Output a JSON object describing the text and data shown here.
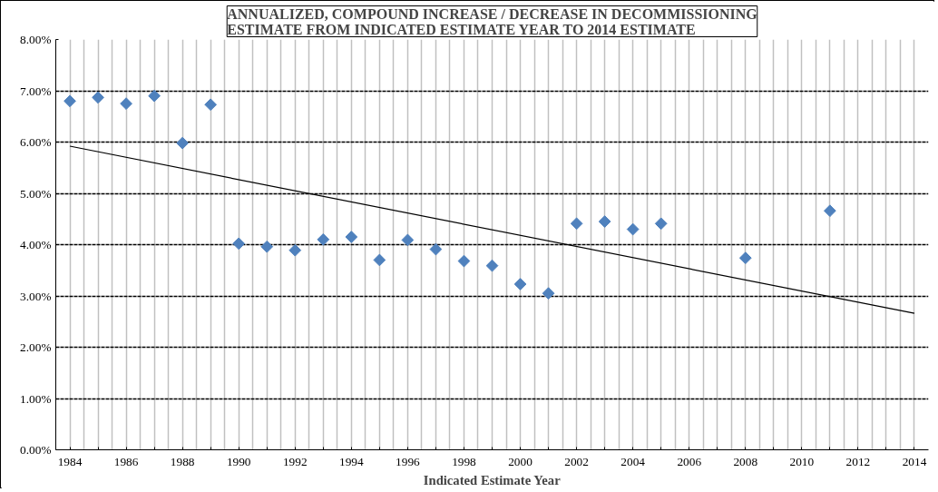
{
  "chart_data": {
    "type": "scatter",
    "title": "ANNUALIZED, COMPOUND INCREASE / DECREASE IN DECOMMISSIONING\nESTIMATE FROM  INDICATED ESTIMATE YEAR TO 2014 ESTIMATE",
    "xlabel": "Indicated Estimate Year",
    "x": [
      1984,
      1985,
      1986,
      1987,
      1988,
      1989,
      1990,
      1991,
      1992,
      1993,
      1994,
      1995,
      1996,
      1997,
      1998,
      1999,
      2000,
      2001,
      2002,
      2003,
      2004,
      2005,
      2008,
      2011
    ],
    "series": [
      {
        "color": "#4f81bd",
        "marker": "diamond",
        "values": [
          6.8,
          6.87,
          6.75,
          6.9,
          5.98,
          6.73,
          4.02,
          3.96,
          3.89,
          4.1,
          4.15,
          3.7,
          4.09,
          3.91,
          3.68,
          3.59,
          3.23,
          3.05,
          4.41,
          4.45,
          4.3,
          4.41,
          3.74,
          4.66
        ]
      },
      {
        "type": "line",
        "color": "#000000",
        "x": [
          1984,
          2014
        ],
        "values": [
          5.92,
          2.66
        ]
      }
    ],
    "xlim": [
      1983.5,
      2014.5
    ],
    "ylim": [
      0,
      8
    ],
    "xticks": [
      1984,
      {
        "value": 1985,
        "label": null
      },
      1986,
      {
        "value": 1987,
        "label": null
      },
      1988,
      {
        "value": 1989,
        "label": null
      },
      1990,
      {
        "value": 1991,
        "label": null
      },
      1992,
      {
        "value": 1993,
        "label": null
      },
      1994,
      {
        "value": 1995,
        "label": null
      },
      1996,
      {
        "value": 1997,
        "label": null
      },
      1998,
      {
        "value": 1999,
        "label": null
      },
      2000,
      {
        "value": 2001,
        "label": null
      },
      2002,
      {
        "value": 2003,
        "label": null
      },
      2004,
      {
        "value": 2005,
        "label": null
      },
      2006,
      {
        "value": 2007,
        "label": null
      },
      2008,
      {
        "value": 2009,
        "label": null
      },
      2010,
      {
        "value": 2011,
        "label": null
      },
      2012,
      {
        "value": 2013,
        "label": null
      },
      2014
    ],
    "yticks": [
      {
        "value": 0,
        "label": "0.00%"
      },
      {
        "value": 1,
        "label": "1.00%"
      },
      {
        "value": 2,
        "label": "2.00%"
      },
      {
        "value": 3,
        "label": "3.00%"
      },
      {
        "value": 4,
        "label": "4.00%"
      },
      {
        "value": 5,
        "label": "5.00%"
      },
      {
        "value": 6,
        "label": "6.00%"
      },
      {
        "value": 7,
        "label": "7.00%"
      },
      {
        "value": 8,
        "label": "8.00%"
      }
    ],
    "grid": true
  }
}
